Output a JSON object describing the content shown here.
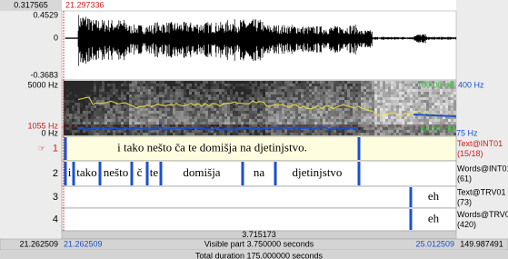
{
  "header": {
    "cursor_value": "0.317565",
    "cursor_time": "21.297336"
  },
  "waveform": {
    "max": "0.4529",
    "zero": "0",
    "min": "-0.3683"
  },
  "spectrogram": {
    "max_freq": "5000 Hz",
    "cursor_freq": "1055 Hz",
    "min_freq": "0 Hz",
    "pitch_max": "400 Hz",
    "pitch_min": "75 Hz",
    "intensity_max": "100.00 dB",
    "intensity_value": "50.87 dB"
  },
  "tiers": [
    {
      "number": "1",
      "marker": "☞",
      "name": "Text@INT01",
      "count": "(15/18)",
      "intervals": [
        "i tako nešto ča te domišja na djetinjstvo."
      ]
    },
    {
      "number": "2",
      "name": "Words@INT01",
      "count": "(61)",
      "intervals": [
        "i",
        "tako",
        "nešto",
        "č",
        "te",
        "domišja",
        "na",
        "djetinjstvo"
      ]
    },
    {
      "number": "3",
      "name": "Text@TRV01",
      "count": "(73)",
      "intervals": [
        "eh"
      ]
    },
    {
      "number": "4",
      "name": "Words@TRV0",
      "count": "(420)",
      "intervals": [
        "eh"
      ]
    }
  ],
  "selection": "3.715173",
  "footer": {
    "start": "21.262509",
    "visible_start": "21.262509",
    "visible": "Visible part 3.750000 seconds",
    "visible_end": "25.012509",
    "remaining": "149.987491",
    "total": "Total duration 175.000000 seconds"
  }
}
